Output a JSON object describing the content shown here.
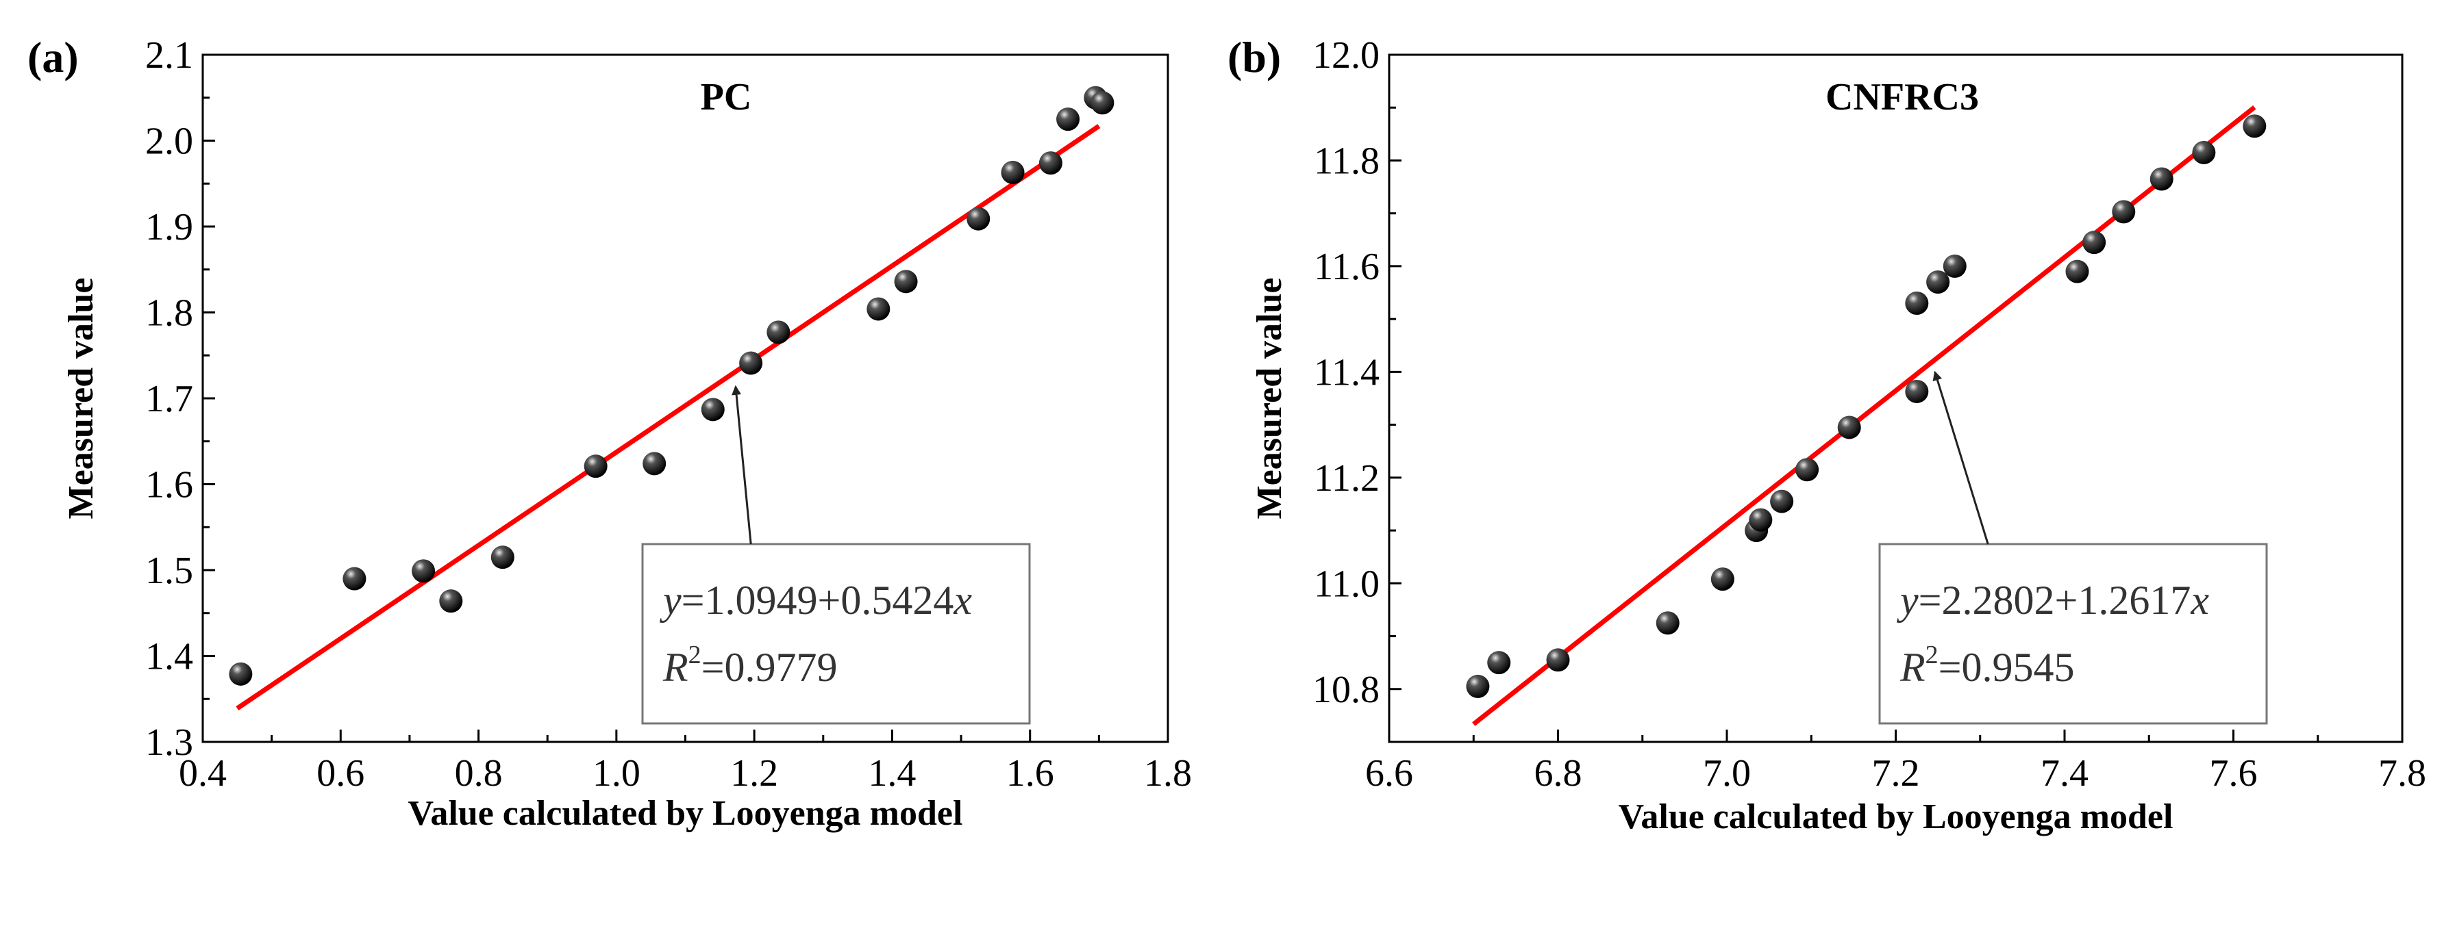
{
  "chart_data": [
    {
      "panel_label": "(a)",
      "type": "scatter",
      "title": "PC",
      "xlabel": "Value calculated by Looyenga model",
      "ylabel": "Measured value",
      "xlim": [
        0.4,
        1.8
      ],
      "ylim": [
        1.3,
        2.1
      ],
      "xticks": [
        "0.4",
        "0.6",
        "0.8",
        "1.0",
        "1.2",
        "1.4",
        "1.6",
        "1.8"
      ],
      "yticks": [
        "1.3",
        "1.4",
        "1.5",
        "1.6",
        "1.7",
        "1.8",
        "1.9",
        "2.0",
        "2.1"
      ],
      "points": [
        [
          0.455,
          1.379
        ],
        [
          0.62,
          1.49
        ],
        [
          0.72,
          1.499
        ],
        [
          0.76,
          1.464
        ],
        [
          0.835,
          1.515
        ],
        [
          0.97,
          1.621
        ],
        [
          1.055,
          1.624
        ],
        [
          1.14,
          1.687
        ],
        [
          1.195,
          1.741
        ],
        [
          1.235,
          1.777
        ],
        [
          1.38,
          1.804
        ],
        [
          1.42,
          1.836
        ],
        [
          1.525,
          1.909
        ],
        [
          1.575,
          1.963
        ],
        [
          1.63,
          1.974
        ],
        [
          1.655,
          2.025
        ],
        [
          1.695,
          2.05
        ],
        [
          1.705,
          2.044
        ]
      ],
      "fit": {
        "intercept": 1.0949,
        "slope": 0.5424,
        "x_range": [
          0.45,
          1.7
        ],
        "color": "#ff0000",
        "equation_y": "y",
        "equation_rest": "=1.0949+0.5424",
        "equation_x": "x",
        "r2_label": "R",
        "r2_sup": "2",
        "r2_value": "=0.9779"
      },
      "annotation_arrow_target": [
        1.165,
        1.72
      ]
    },
    {
      "panel_label": "(b)",
      "type": "scatter",
      "title": "CNFRC3",
      "xlabel": "Value calculated by Looyenga model",
      "ylabel": "Measured value",
      "xlim": [
        6.6,
        7.8
      ],
      "ylim": [
        10.7,
        12.0
      ],
      "xticks": [
        "6.6",
        "6.8",
        "7.0",
        "7.2",
        "7.4",
        "7.6",
        "7.8"
      ],
      "yticks": [
        "10.8",
        "11.0",
        "11.2",
        "11.4",
        "11.6",
        "11.8",
        "12.0"
      ],
      "points": [
        [
          6.705,
          10.805
        ],
        [
          6.73,
          10.85
        ],
        [
          6.8,
          10.855
        ],
        [
          6.93,
          10.925
        ],
        [
          6.995,
          11.008
        ],
        [
          7.035,
          11.1
        ],
        [
          7.04,
          11.12
        ],
        [
          7.065,
          11.155
        ],
        [
          7.095,
          11.215
        ],
        [
          7.145,
          11.295
        ],
        [
          7.225,
          11.363
        ],
        [
          7.225,
          11.53
        ],
        [
          7.25,
          11.57
        ],
        [
          7.27,
          11.6
        ],
        [
          7.415,
          11.59
        ],
        [
          7.435,
          11.645
        ],
        [
          7.47,
          11.703
        ],
        [
          7.515,
          11.765
        ],
        [
          7.565,
          11.815
        ],
        [
          7.625,
          11.865
        ]
      ],
      "fit": {
        "intercept": 2.2802,
        "slope": 1.2617,
        "x_range": [
          6.7,
          7.625
        ],
        "color": "#ff0000",
        "equation_y": "y",
        "equation_rest": "=2.2802+1.2617",
        "equation_x": "x",
        "r2_label": "R",
        "r2_sup": "2",
        "r2_value": "=0.9545"
      },
      "annotation_arrow_target": [
        7.24,
        11.41
      ]
    }
  ]
}
